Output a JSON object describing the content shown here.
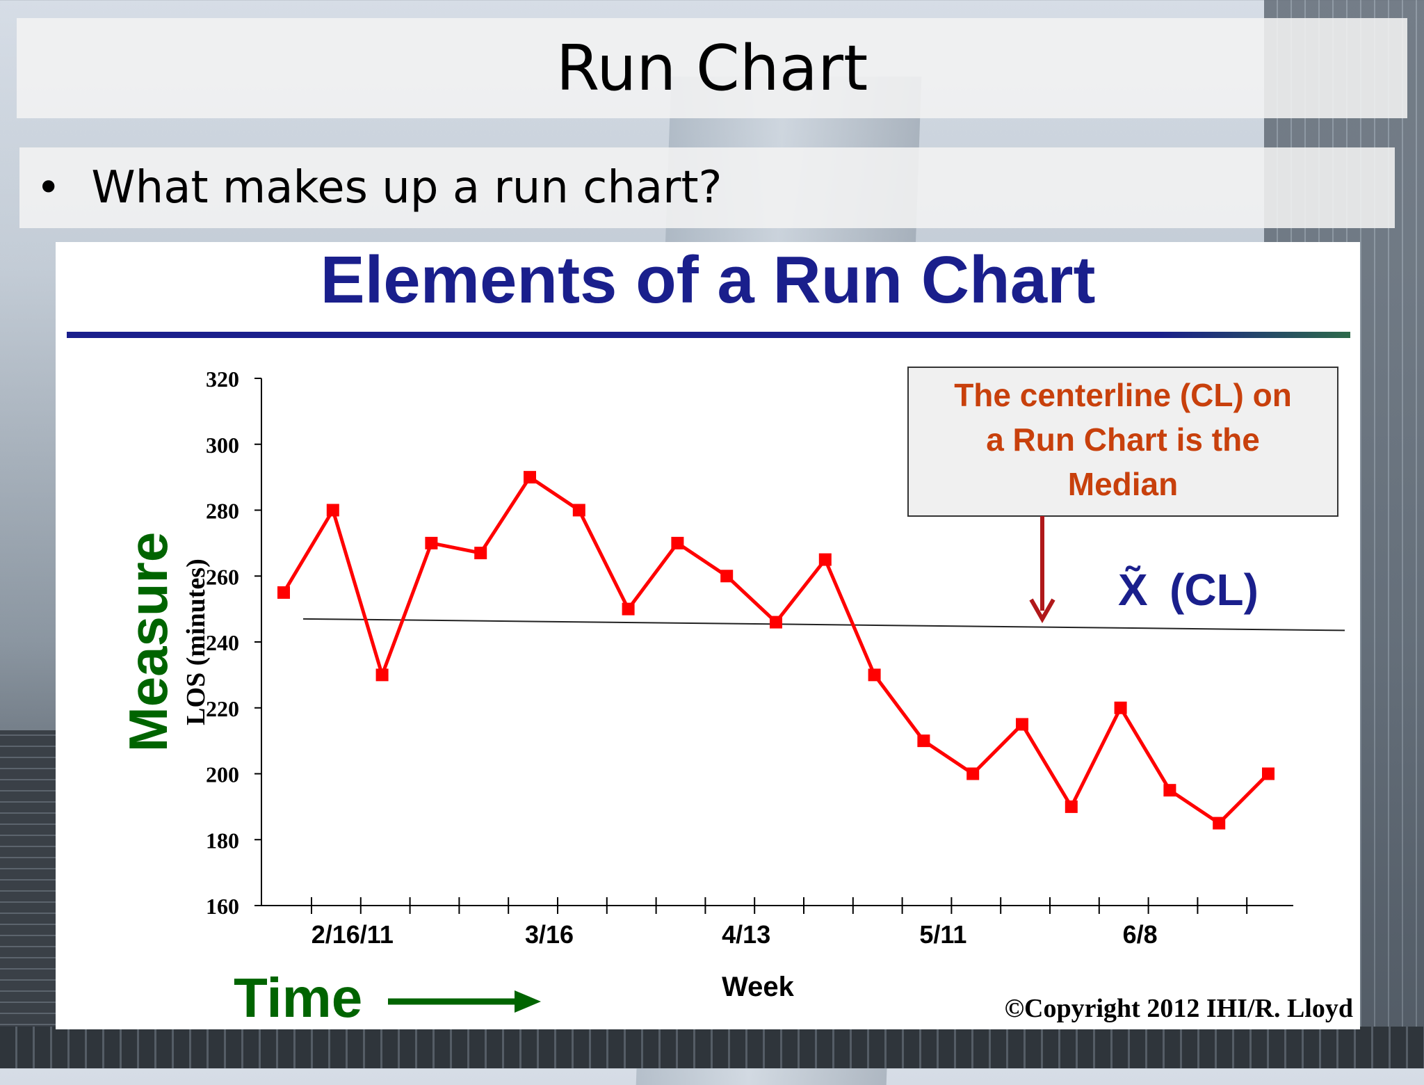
{
  "slide": {
    "title": "Run Chart",
    "bullet": "What makes up a run chart?"
  },
  "panel": {
    "title": "Elements of a Run Chart",
    "copyright": "©Copyright  2012  IHI/R. Lloyd"
  },
  "chart_data": {
    "type": "line",
    "title": "Elements of a Run Chart",
    "ylabel": "LOS (minutes)",
    "ylabel_outer": "Measure",
    "xlabel": "Week",
    "time_label": "Time",
    "ylim": [
      160,
      320
    ],
    "yticks": [
      160,
      180,
      200,
      220,
      240,
      260,
      280,
      300,
      320
    ],
    "xtick_labels": [
      "2/16/11",
      "3/16",
      "4/13",
      "5/11",
      "6/8"
    ],
    "values": [
      255,
      280,
      230,
      270,
      267,
      290,
      280,
      250,
      270,
      260,
      246,
      265,
      230,
      210,
      200,
      215,
      190,
      220,
      195,
      185,
      200
    ],
    "centerline": {
      "label": "(CL)",
      "symbol": "X̃",
      "start": 247,
      "end": 243.5
    },
    "annotation": {
      "lines": [
        "The centerline (CL) on",
        "a Run Chart is the",
        "Median"
      ]
    },
    "colors": {
      "series": "#ff0000",
      "title": "#1a1f8c",
      "measure": "#006400",
      "annotation_text": "#c8400c",
      "arrow": "#b0181a",
      "cl_label": "#1a1f8c"
    },
    "grid": false,
    "legend": "none"
  }
}
